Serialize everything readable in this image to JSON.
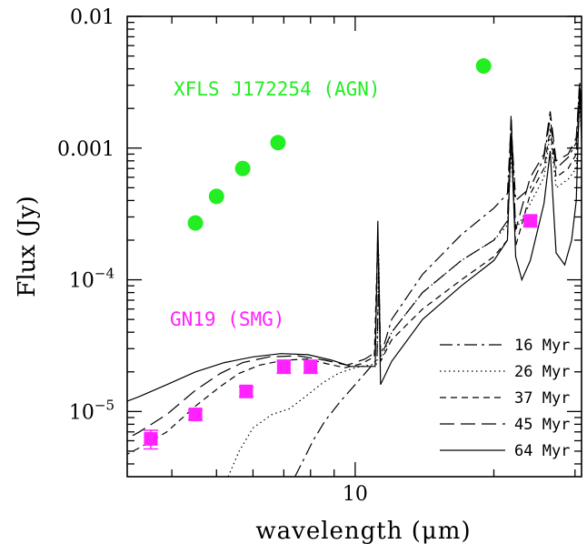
{
  "chart_data": {
    "type": "scatter",
    "xlabel": "wavelength",
    "xlabel_unit": "(μm)",
    "ylabel": "Flux (Jy)",
    "xscale": "log",
    "yscale": "log",
    "xlim": [
      3.2,
      31
    ],
    "ylim": [
      3.2e-06,
      0.01
    ],
    "x_tick_labels": [
      {
        "value": 10,
        "label": "10"
      }
    ],
    "y_tick_labels": [
      {
        "value": 0.01,
        "label": "0.01"
      },
      {
        "value": 0.001,
        "label": "0.001"
      },
      {
        "value": 0.0001,
        "label": "10",
        "sup": "−4"
      },
      {
        "value": 1e-05,
        "label": "10",
        "sup": "−5"
      }
    ],
    "annotations": [
      {
        "text": "XFLS J172254 (AGN)",
        "color": "#22ee22"
      },
      {
        "text": "GN19 (SMG)",
        "color": "#ff22ff"
      }
    ],
    "legend": {
      "position": "bottom-right",
      "entries": [
        "16 Myr",
        "26 Myr",
        "37 Myr",
        "45 Myr",
        "64 Myr"
      ]
    },
    "point_series": [
      {
        "label_ref": "XFLS J172254 (AGN)",
        "color": "#22ee22",
        "marker": "circle",
        "points": [
          {
            "x": 4.5,
            "y": 0.00027
          },
          {
            "x": 5.0,
            "y": 0.00043
          },
          {
            "x": 5.7,
            "y": 0.0007
          },
          {
            "x": 6.8,
            "y": 0.0011
          },
          {
            "x": 19.0,
            "y": 0.0042
          }
        ]
      },
      {
        "label_ref": "GN19 (SMG)",
        "color": "#ff22ff",
        "marker": "square",
        "points": [
          {
            "x": 3.6,
            "y": 6.2e-06,
            "err": 1e-06
          },
          {
            "x": 4.5,
            "y": 9.5e-06,
            "err": 8e-07
          },
          {
            "x": 5.8,
            "y": 1.42e-05,
            "err": 1.2e-06
          },
          {
            "x": 7.0,
            "y": 2.2e-05,
            "err": 2.5e-06
          },
          {
            "x": 8.0,
            "y": 2.2e-05,
            "err": 2.5e-06
          },
          {
            "x": 24.0,
            "y": 0.00028,
            "err": 2.5e-05
          }
        ]
      }
    ],
    "model_series": [
      {
        "name": "16 Myr",
        "dash": "long-short",
        "points": [
          [
            7.4,
            3.2e-06
          ],
          [
            7.7,
            4.2e-06
          ],
          [
            8.1,
            6e-06
          ],
          [
            8.6,
            8.5e-06
          ],
          [
            9.3,
            1.2e-05
          ],
          [
            10.0,
            1.6e-05
          ],
          [
            10.7,
            2.1e-05
          ],
          [
            11.15,
            2.5e-05
          ],
          [
            11.25,
            0.00013
          ],
          [
            11.35,
            2.6e-05
          ],
          [
            12,
            5e-05
          ],
          [
            14,
            0.00011
          ],
          [
            17,
            0.00022
          ],
          [
            20,
            0.00035
          ],
          [
            21.4,
            0.00045
          ],
          [
            21.8,
            0.0015
          ],
          [
            22.3,
            0.0004
          ],
          [
            24.0,
            0.0005
          ],
          [
            25.7,
            0.00085
          ],
          [
            26.5,
            0.0017
          ],
          [
            27.3,
            0.0007
          ],
          [
            29,
            0.00085
          ],
          [
            30.2,
            0.0011
          ],
          [
            30.7,
            0.0032
          ],
          [
            31.2,
            0.0014
          ],
          [
            33,
            0.0017
          ],
          [
            36,
            0.0025
          ]
        ]
      },
      {
        "name": "26 Myr",
        "dash": "dotted",
        "points": [
          [
            5.3,
            3.2e-06
          ],
          [
            5.6,
            5e-06
          ],
          [
            6.0,
            7.5e-06
          ],
          [
            6.6,
            9.5e-06
          ],
          [
            7.2,
            1.05e-05
          ],
          [
            7.8,
            1.3e-05
          ],
          [
            8.5,
            1.65e-05
          ],
          [
            9.2,
            1.95e-05
          ],
          [
            10.0,
            2.15e-05
          ],
          [
            10.7,
            2.25e-05
          ],
          [
            11.15,
            2.3e-05
          ],
          [
            11.25,
            0.00016
          ],
          [
            11.35,
            2.4e-05
          ],
          [
            12,
            4e-05
          ],
          [
            14,
            8e-05
          ],
          [
            17,
            0.00014
          ],
          [
            20,
            0.0002
          ],
          [
            21.4,
            0.00026
          ],
          [
            21.8,
            0.0009
          ],
          [
            22.3,
            0.00024
          ],
          [
            24.0,
            0.00038
          ],
          [
            25.7,
            0.0006
          ],
          [
            26.5,
            0.0013
          ],
          [
            27.3,
            0.0005
          ],
          [
            29,
            0.00058
          ],
          [
            30.2,
            0.0007
          ],
          [
            30.7,
            0.0021
          ],
          [
            31.2,
            0.0009
          ],
          [
            33,
            0.0011
          ],
          [
            36,
            0.0016
          ]
        ]
      },
      {
        "name": "37 Myr",
        "dash": "dashed",
        "points": [
          [
            3.0,
            4.2e-06
          ],
          [
            3.4,
            5.3e-06
          ],
          [
            3.9,
            7e-06
          ],
          [
            4.5,
            1.1e-05
          ],
          [
            5.1,
            1.55e-05
          ],
          [
            5.6,
            1.95e-05
          ],
          [
            6.2,
            2.25e-05
          ],
          [
            7.0,
            2.45e-05
          ],
          [
            7.9,
            2.5e-05
          ],
          [
            8.7,
            2.3e-05
          ],
          [
            9.5,
            2.15e-05
          ],
          [
            10.3,
            2.3e-05
          ],
          [
            11.0,
            2.6e-05
          ],
          [
            11.2,
            0.00021
          ],
          [
            11.35,
            2.4e-05
          ],
          [
            12,
            3.5e-05
          ],
          [
            14,
            6e-05
          ],
          [
            17,
            0.0001
          ],
          [
            20,
            0.00015
          ],
          [
            21.4,
            0.0002
          ],
          [
            21.8,
            0.0012
          ],
          [
            22.3,
            0.00018
          ],
          [
            24.0,
            0.00045
          ],
          [
            25.7,
            0.0007
          ],
          [
            26.5,
            0.0014
          ],
          [
            27.3,
            0.0006
          ],
          [
            29,
            0.0007
          ],
          [
            30.2,
            0.0009
          ],
          [
            30.7,
            0.0026
          ],
          [
            31.2,
            0.0011
          ],
          [
            33,
            0.0013
          ],
          [
            36,
            0.002
          ]
        ]
      },
      {
        "name": "45 Myr",
        "dash": "long-dash",
        "points": [
          [
            3.0,
            5.5e-06
          ],
          [
            3.4,
            7e-06
          ],
          [
            3.9,
            9.5e-06
          ],
          [
            4.5,
            1.45e-05
          ],
          [
            5.1,
            1.95e-05
          ],
          [
            5.7,
            2.35e-05
          ],
          [
            6.5,
            2.6e-05
          ],
          [
            7.5,
            2.65e-05
          ],
          [
            8.6,
            2.45e-05
          ],
          [
            9.6,
            2.25e-05
          ],
          [
            10.5,
            2.5e-05
          ],
          [
            11.05,
            2.8e-05
          ],
          [
            11.2,
            0.00023
          ],
          [
            11.35,
            2.6e-05
          ],
          [
            12,
            4e-05
          ],
          [
            14,
            8e-05
          ],
          [
            17,
            0.00014
          ],
          [
            20,
            0.0002
          ],
          [
            21.4,
            0.00028
          ],
          [
            21.8,
            0.0018
          ],
          [
            22.3,
            0.00024
          ],
          [
            24.0,
            0.0006
          ],
          [
            25.7,
            0.0009
          ],
          [
            26.5,
            0.0019
          ],
          [
            27.3,
            0.0008
          ],
          [
            29,
            0.0009
          ],
          [
            30.2,
            0.0012
          ],
          [
            30.7,
            0.0031
          ],
          [
            31.2,
            0.0014
          ],
          [
            33,
            0.0017
          ],
          [
            36,
            0.0024
          ]
        ]
      },
      {
        "name": "64 Myr",
        "dash": "solid",
        "points": [
          [
            3.0,
            1.1e-05
          ],
          [
            3.4,
            1.3e-05
          ],
          [
            3.9,
            1.6e-05
          ],
          [
            4.5,
            2e-05
          ],
          [
            5.2,
            2.35e-05
          ],
          [
            6.0,
            2.6e-05
          ],
          [
            6.9,
            2.75e-05
          ],
          [
            7.9,
            2.7e-05
          ],
          [
            8.9,
            2.45e-05
          ],
          [
            9.8,
            2.2e-05
          ],
          [
            10.6,
            2.2e-05
          ],
          [
            11.05,
            2.2e-05
          ],
          [
            11.2,
            0.00028
          ],
          [
            11.35,
            1.6e-05
          ],
          [
            12,
            2.4e-05
          ],
          [
            14,
            5e-05
          ],
          [
            17,
            9e-05
          ],
          [
            20,
            0.00014
          ],
          [
            21.4,
            0.0002
          ],
          [
            21.8,
            0.0013
          ],
          [
            22.3,
            0.00015
          ],
          [
            23.0,
            0.0001
          ],
          [
            24.0,
            0.00014
          ],
          [
            25.7,
            0.00038
          ],
          [
            26.5,
            0.00095
          ],
          [
            27.3,
            0.00016
          ],
          [
            28.5,
            0.00013
          ],
          [
            29.5,
            0.0002
          ],
          [
            30.2,
            0.0004
          ],
          [
            30.7,
            0.0029
          ],
          [
            31.2,
            0.0006
          ],
          [
            33,
            0.0007
          ],
          [
            36,
            0.0009
          ]
        ]
      }
    ]
  }
}
